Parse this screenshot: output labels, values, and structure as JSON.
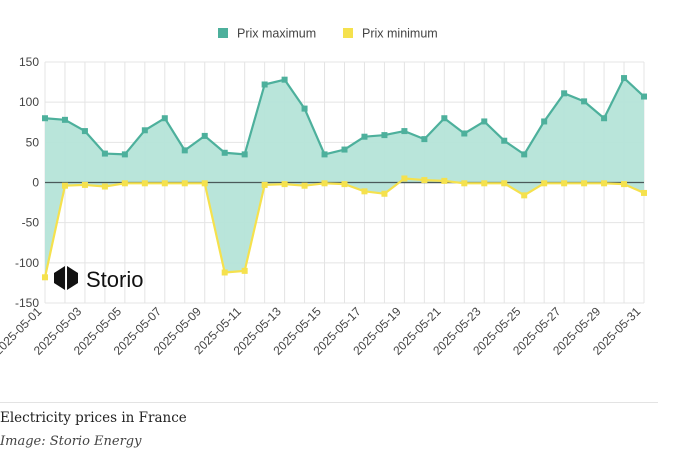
{
  "colors": {
    "max": "#4db09c",
    "max_fill": "#b5e4d8",
    "min": "#f5e14d",
    "zero_line": "#4a5a5a",
    "grid": "#e4e4e4"
  },
  "logo": {
    "text": "Storio",
    "icon": "storio-logo-icon"
  },
  "caption": {
    "title": "Electricity prices in France",
    "credit": "Image: Storio Energy"
  },
  "chart_data": {
    "type": "area",
    "title": "",
    "xlabel": "",
    "ylabel": "",
    "ylim": [
      -150,
      150
    ],
    "yticks": [
      150,
      100,
      50,
      0,
      -50,
      -100,
      -150
    ],
    "grid": true,
    "legend_position": "top",
    "x": [
      "2025-05-01",
      "2025-05-02",
      "2025-05-03",
      "2025-05-04",
      "2025-05-05",
      "2025-05-06",
      "2025-05-07",
      "2025-05-08",
      "2025-05-09",
      "2025-05-10",
      "2025-05-11",
      "2025-05-12",
      "2025-05-13",
      "2025-05-14",
      "2025-05-15",
      "2025-05-16",
      "2025-05-17",
      "2025-05-18",
      "2025-05-19",
      "2025-05-20",
      "2025-05-21",
      "2025-05-22",
      "2025-05-23",
      "2025-05-24",
      "2025-05-25",
      "2025-05-26",
      "2025-05-27",
      "2025-05-28",
      "2025-05-29",
      "2025-05-30",
      "2025-05-31"
    ],
    "xtick_labels": [
      "2025-05-01",
      "2025-05-03",
      "2025-05-05",
      "2025-05-07",
      "2025-05-09",
      "2025-05-11",
      "2025-05-13",
      "2025-05-15",
      "2025-05-17",
      "2025-05-19",
      "2025-05-21",
      "2025-05-23",
      "2025-05-25",
      "2025-05-27",
      "2025-05-29",
      "2025-05-31"
    ],
    "series": [
      {
        "name": "Prix maximum",
        "values": [
          80,
          78,
          64,
          36,
          35,
          65,
          80,
          40,
          58,
          37,
          35,
          122,
          128,
          92,
          35,
          41,
          57,
          59,
          64,
          54,
          80,
          61,
          76,
          52,
          35,
          76,
          111,
          101,
          80,
          130,
          107
        ]
      },
      {
        "name": "Prix minimum",
        "values": [
          -118,
          -4,
          -3,
          -5,
          -1,
          -1,
          -1,
          -1,
          -1,
          -112,
          -110,
          -3,
          -2,
          -4,
          -1,
          -2,
          -11,
          -14,
          5,
          3,
          2,
          -1,
          -1,
          -1,
          -16,
          -1,
          -1,
          -1,
          -1,
          -2,
          -13
        ]
      }
    ]
  }
}
